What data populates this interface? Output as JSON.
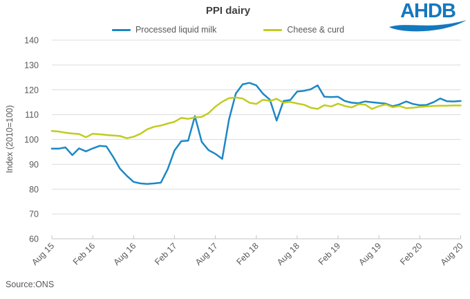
{
  "header": {
    "title": "PPI dairy"
  },
  "logo": {
    "text": "AHDB"
  },
  "source": {
    "text": "Source:ONS"
  },
  "colors": {
    "blue": "#1d87c5",
    "yellow_green": "#c0cc1f",
    "grid": "#dcdcdc",
    "axis": "#c3c3c3",
    "text": "#595959",
    "title": "#404040",
    "logo_blue": "#1478be"
  },
  "legend": {
    "position": "top"
  },
  "chart_data": {
    "type": "line",
    "title": "PPI dairy",
    "xlabel": "",
    "ylabel": "Index (2010=100)",
    "ylim": [
      60,
      140
    ],
    "y_step": 10,
    "grid": true,
    "legend_position": "top",
    "categories": [
      "Aug 15",
      "Sep 15",
      "Oct 15",
      "Nov 15",
      "Dec 15",
      "Jan 16",
      "Feb 16",
      "Mar 16",
      "Apr 16",
      "May 16",
      "Jun 16",
      "Jul 16",
      "Aug 16",
      "Sep 16",
      "Oct 16",
      "Nov 16",
      "Dec 16",
      "Jan 17",
      "Feb 17",
      "Mar 17",
      "Apr 17",
      "May 17",
      "Jun 17",
      "Jul 17",
      "Aug 17",
      "Sep 17",
      "Oct 17",
      "Nov 17",
      "Dec 17",
      "Jan 18",
      "Feb 18",
      "Mar 18",
      "Apr 18",
      "May 18",
      "Jun 18",
      "Jul 18",
      "Aug 18",
      "Sep 18",
      "Oct 18",
      "Nov 18",
      "Dec 18",
      "Jan 19",
      "Feb 19",
      "Mar 19",
      "Apr 19",
      "May 19",
      "Jun 19",
      "Jul 19",
      "Aug 19",
      "Sep 19",
      "Oct 19",
      "Nov 19",
      "Dec 19",
      "Jan 20",
      "Feb 20",
      "Mar 20",
      "Apr 20",
      "May 20",
      "Jun 20",
      "Jul 20",
      "Aug 20"
    ],
    "x_tick_indices": [
      0,
      6,
      12,
      18,
      24,
      30,
      36,
      42,
      48,
      54,
      60
    ],
    "x_tick_labels": [
      "Aug 15",
      "Feb 16",
      "Aug 16",
      "Feb 17",
      "Aug 17",
      "Feb 18",
      "Aug 18",
      "Feb 19",
      "Aug 19",
      "Feb 20",
      "Aug 20"
    ],
    "series": [
      {
        "name": "Processed liquid milk",
        "color": "#1d87c5",
        "values": [
          96.3,
          96.3,
          96.8,
          93.7,
          96.4,
          95.2,
          96.4,
          97.4,
          97.2,
          93.0,
          88.2,
          85.4,
          82.9,
          82.3,
          82.1,
          82.3,
          82.6,
          88.0,
          95.5,
          99.3,
          99.5,
          109.4,
          99.0,
          95.7,
          94.2,
          92.2,
          108.0,
          118.5,
          122.2,
          122.8,
          121.8,
          118.4,
          116.0,
          107.6,
          115.5,
          115.9,
          119.3,
          119.6,
          120.2,
          121.8,
          117.2,
          117.1,
          117.2,
          115.5,
          114.8,
          114.6,
          115.3,
          115.0,
          114.7,
          114.4,
          113.4,
          114.1,
          115.3,
          114.3,
          113.8,
          113.9,
          115.0,
          116.5,
          115.4,
          115.3,
          115.5
        ]
      },
      {
        "name": "Cheese & curd",
        "color": "#c0cc1f",
        "values": [
          103.4,
          103.2,
          102.7,
          102.4,
          102.2,
          100.9,
          102.3,
          102.1,
          101.8,
          101.6,
          101.4,
          100.5,
          101.1,
          102.3,
          104.1,
          105.1,
          105.6,
          106.4,
          107.1,
          108.7,
          108.3,
          108.9,
          109.1,
          110.6,
          113.2,
          115.2,
          116.6,
          116.9,
          116.5,
          114.8,
          114.3,
          116.0,
          115.5,
          116.4,
          114.8,
          115.1,
          114.5,
          114.0,
          112.8,
          112.3,
          113.8,
          113.3,
          114.4,
          113.5,
          112.9,
          114.2,
          114.0,
          112.3,
          113.4,
          114.1,
          113.0,
          113.5,
          112.6,
          112.8,
          113.1,
          113.3,
          113.5,
          113.6,
          113.6,
          113.7,
          113.7
        ]
      }
    ]
  }
}
